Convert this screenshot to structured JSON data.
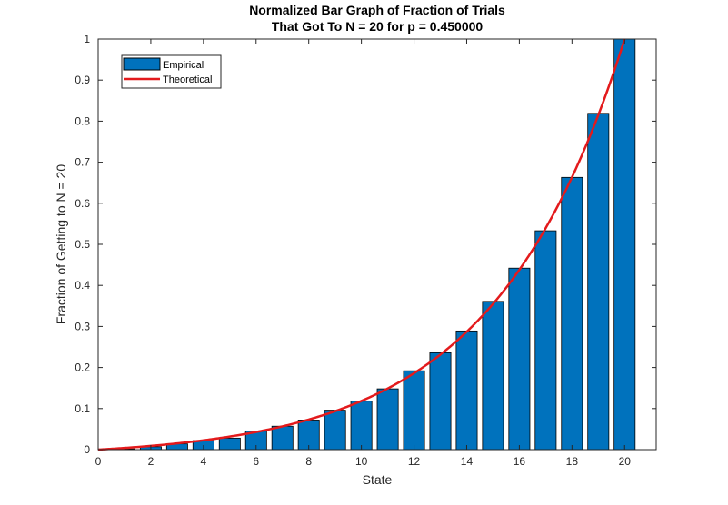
{
  "chart_data": {
    "type": "bar",
    "title": [
      "Normalized Bar Graph of Fraction of Trials",
      "That Got To N = 20 for p = 0.450000"
    ],
    "xlabel": "State",
    "ylabel": "Fraction of Getting to N = 20",
    "xlim": [
      0,
      21.2
    ],
    "ylim": [
      0,
      1
    ],
    "xticks": [
      0,
      2,
      4,
      6,
      8,
      10,
      12,
      14,
      16,
      18,
      20
    ],
    "yticks": [
      0,
      0.1,
      0.2,
      0.3,
      0.4,
      0.5,
      0.6,
      0.7,
      0.8,
      0.9,
      1
    ],
    "legend_position": "top-left",
    "bar_color": "#0072BD",
    "line_color": "#E31A1C",
    "series": [
      {
        "name": "Empirical",
        "kind": "bar",
        "x": [
          1,
          2,
          3,
          4,
          5,
          6,
          7,
          8,
          9,
          10,
          11,
          12,
          13,
          14,
          15,
          16,
          17,
          18,
          19,
          20
        ],
        "values": [
          0.002,
          0.007,
          0.014,
          0.022,
          0.028,
          0.045,
          0.057,
          0.072,
          0.096,
          0.118,
          0.148,
          0.192,
          0.236,
          0.289,
          0.361,
          0.442,
          0.533,
          0.663,
          0.819,
          1.0
        ]
      },
      {
        "name": "Theoretical",
        "kind": "line",
        "formula": "((q/p)^i - 1) / ((q/p)^N - 1)",
        "p": 0.45,
        "N": 20
      }
    ]
  }
}
